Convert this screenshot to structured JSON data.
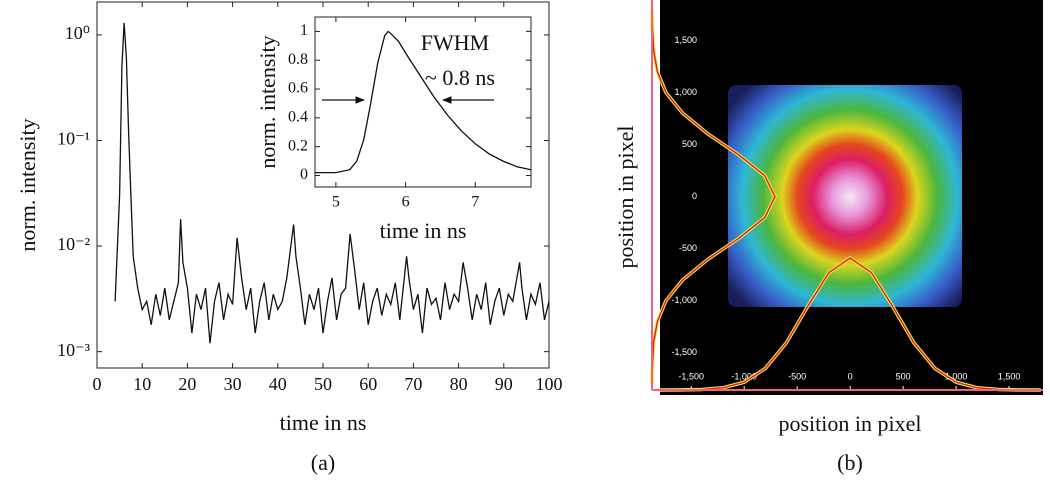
{
  "chart_data": [
    {
      "type": "line",
      "yscale": "log",
      "x_label": "time in ns",
      "y_label": "norm. intensity",
      "caption": "(a)",
      "color": "#111111",
      "xlim": [
        0,
        100
      ],
      "xticks": [
        0,
        10,
        20,
        30,
        40,
        50,
        60,
        70,
        80,
        90,
        100
      ],
      "ylim": [
        0.0007,
        2.05
      ],
      "yticks": [
        {
          "value": 1,
          "label": "10⁰"
        },
        {
          "value": 0.1,
          "label": "10⁻¹"
        },
        {
          "value": 0.01,
          "label": "10⁻²"
        },
        {
          "value": 0.001,
          "label": "10⁻³"
        }
      ],
      "x": [
        4,
        5,
        5.5,
        6,
        6.5,
        7,
        7.5,
        8,
        9,
        10,
        11,
        12,
        13,
        14,
        15,
        16,
        17,
        18,
        18.5,
        19,
        20,
        21,
        22,
        23,
        24,
        25,
        26,
        27,
        28,
        29,
        30,
        31,
        32,
        33,
        34,
        35,
        36,
        37,
        38,
        39,
        40,
        41,
        42,
        43.5,
        44,
        45,
        46,
        47,
        48,
        49,
        50,
        51,
        52,
        53,
        54,
        55,
        56,
        57,
        58,
        59,
        60,
        61,
        62,
        63,
        64,
        65,
        66,
        67,
        68.5,
        69,
        70,
        71,
        72,
        73,
        74,
        75,
        76,
        77,
        78,
        79,
        80,
        81,
        82,
        83,
        84,
        85,
        86,
        87,
        88,
        89,
        90,
        91,
        92,
        93.5,
        94,
        95,
        96,
        97,
        98,
        99,
        100
      ],
      "values": [
        0.003,
        0.03,
        0.5,
        1.3,
        0.6,
        0.12,
        0.03,
        0.008,
        0.004,
        0.0025,
        0.003,
        0.0018,
        0.0035,
        0.0022,
        0.004,
        0.002,
        0.003,
        0.0045,
        0.018,
        0.007,
        0.004,
        0.0015,
        0.0035,
        0.0025,
        0.004,
        0.0012,
        0.003,
        0.0045,
        0.002,
        0.0035,
        0.0028,
        0.012,
        0.005,
        0.0025,
        0.004,
        0.0015,
        0.003,
        0.0045,
        0.002,
        0.0035,
        0.0025,
        0.003,
        0.005,
        0.016,
        0.008,
        0.004,
        0.0018,
        0.0035,
        0.0025,
        0.004,
        0.0015,
        0.003,
        0.005,
        0.002,
        0.0035,
        0.004,
        0.013,
        0.006,
        0.0025,
        0.0045,
        0.0018,
        0.003,
        0.004,
        0.0022,
        0.0035,
        0.0028,
        0.0045,
        0.002,
        0.008,
        0.005,
        0.0025,
        0.0035,
        0.0015,
        0.004,
        0.0028,
        0.0032,
        0.002,
        0.0045,
        0.0025,
        0.0035,
        0.003,
        0.007,
        0.004,
        0.002,
        0.0035,
        0.0025,
        0.0045,
        0.0018,
        0.003,
        0.004,
        0.0022,
        0.0035,
        0.003,
        0.007,
        0.004,
        0.002,
        0.0035,
        0.0028,
        0.0045,
        0.002,
        0.003
      ]
    },
    {
      "type": "line",
      "x_label": "time in ns",
      "y_label": "norm. intensity",
      "color": "#111111",
      "annotations": [
        "FWHM",
        "~ 0.8 ns"
      ],
      "xlim": [
        4.7,
        7.8
      ],
      "xticks": [
        5,
        6,
        7
      ],
      "ylim": [
        -0.08,
        1.1
      ],
      "yticks": [
        0,
        0.2,
        0.4,
        0.6,
        0.8,
        1
      ],
      "x": [
        4.7,
        5.0,
        5.2,
        5.3,
        5.4,
        5.5,
        5.6,
        5.7,
        5.75,
        5.8,
        5.9,
        6.0,
        6.2,
        6.4,
        6.6,
        6.8,
        7.0,
        7.2,
        7.4,
        7.6,
        7.8
      ],
      "values": [
        0.02,
        0.02,
        0.04,
        0.1,
        0.25,
        0.5,
        0.78,
        0.97,
        1.0,
        0.98,
        0.93,
        0.85,
        0.7,
        0.55,
        0.42,
        0.31,
        0.22,
        0.15,
        0.1,
        0.06,
        0.04
      ]
    },
    {
      "type": "image",
      "x_label": "position in pixel",
      "y_label": "position in pixel",
      "caption": "(b)",
      "color": "#e0202a",
      "xlim": [
        -1870,
        1820
      ],
      "ylim": [
        -1860,
        1890
      ],
      "xticks": [
        {
          "value": -1500,
          "label": "-1,500"
        },
        {
          "value": -1000,
          "label": "-1,000"
        },
        -500,
        0,
        500,
        {
          "value": 1000,
          "label": "1,000"
        },
        {
          "value": 1500,
          "label": "1,500"
        }
      ],
      "yticks": [
        {
          "value": 1500,
          "label": "1,500"
        },
        {
          "value": 1000,
          "label": "1,000"
        },
        500,
        0,
        -500,
        {
          "value": -1000,
          "label": "-1,000"
        },
        {
          "value": -1500,
          "label": "-1,500"
        }
      ],
      "x_profile": {
        "positions": [
          -1800,
          -1600,
          -1400,
          -1200,
          -1000,
          -800,
          -600,
          -400,
          -200,
          0,
          200,
          400,
          600,
          800,
          1000,
          1200,
          1400,
          1600,
          1800
        ],
        "values": [
          0,
          0.001,
          0.004,
          0.017,
          0.059,
          0.164,
          0.36,
          0.635,
          0.89,
          1,
          0.89,
          0.635,
          0.36,
          0.164,
          0.059,
          0.017,
          0.004,
          0.001,
          0
        ]
      },
      "y_profile": {
        "positions": [
          -1800,
          -1600,
          -1400,
          -1200,
          -1000,
          -800,
          -600,
          -400,
          -200,
          0,
          200,
          400,
          600,
          800,
          1000,
          1200,
          1400,
          1600,
          1800
        ],
        "values": [
          0.001,
          0.004,
          0.014,
          0.044,
          0.114,
          0.25,
          0.458,
          0.707,
          0.917,
          1,
          0.917,
          0.707,
          0.458,
          0.25,
          0.114,
          0.044,
          0.014,
          0.004,
          0.001
        ]
      }
    }
  ]
}
